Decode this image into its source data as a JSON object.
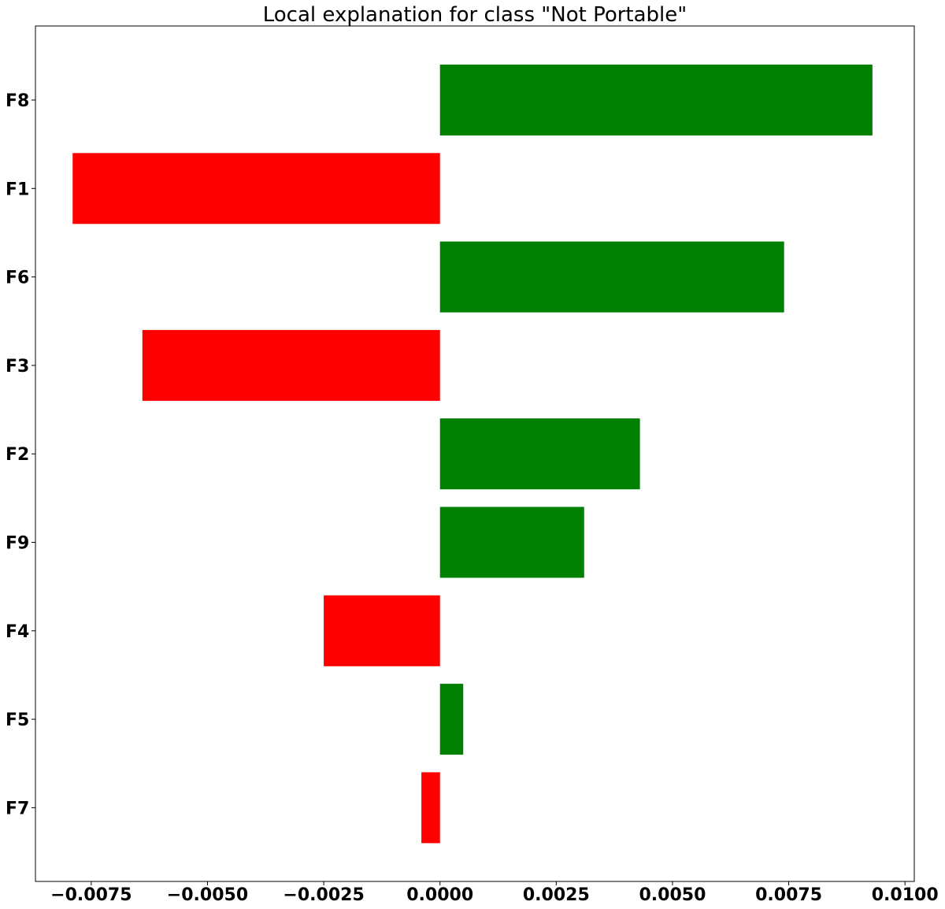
{
  "chart_data": {
    "type": "bar",
    "orientation": "horizontal",
    "title": "Local explanation for class \"Not Portable\"",
    "xlabel": "",
    "ylabel": "",
    "categories": [
      "F8",
      "F1",
      "F6",
      "F3",
      "F2",
      "F9",
      "F4",
      "F5",
      "F7"
    ],
    "values": [
      0.0093,
      -0.0079,
      0.0074,
      -0.0064,
      0.0043,
      0.0031,
      -0.0025,
      0.0005,
      -0.0004
    ],
    "xlim": [
      -0.0087,
      0.0102
    ],
    "xticks": [
      -0.0075,
      -0.005,
      -0.0025,
      0.0,
      0.0025,
      0.005,
      0.0075,
      0.01
    ],
    "xtick_labels": [
      "−0.0075",
      "−0.0050",
      "−0.0025",
      "0.0000",
      "0.0025",
      "0.0050",
      "0.0075",
      "0.0100"
    ],
    "grid": false,
    "legend": "none",
    "colors": {
      "positive": "#008000",
      "negative": "#ff0000",
      "axis": "#000000",
      "background": "#ffffff"
    }
  }
}
